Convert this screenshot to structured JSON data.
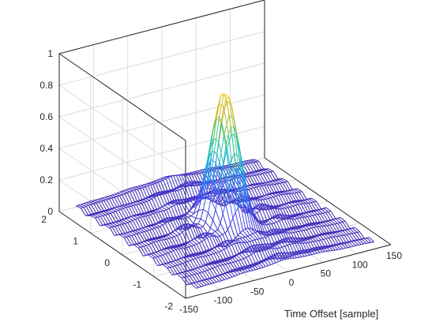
{
  "chart_data": {
    "type": "mesh3d",
    "title": "",
    "xlabel": "Time Offset [sample]",
    "ylabel": "",
    "zlabel": "",
    "xlim": [
      -150,
      150
    ],
    "ylim": [
      -2,
      2
    ],
    "zlim": [
      0,
      1
    ],
    "x_ticks": [
      -150,
      -100,
      -50,
      0,
      50,
      100,
      150
    ],
    "x_tick_labels": [
      "-150",
      "-100",
      "-50",
      "0",
      "50",
      "100",
      "150"
    ],
    "y_ticks": [
      -2,
      -1,
      0,
      1,
      2
    ],
    "y_tick_labels": [
      "-2",
      "-1",
      "0",
      "1",
      "2"
    ],
    "z_ticks": [
      0,
      0.2,
      0.4,
      0.6,
      0.8,
      1
    ],
    "z_tick_labels": [
      "0",
      "0.2",
      "0.4",
      "0.6",
      "0.8",
      "1"
    ],
    "grid": true,
    "colormap": [
      "#3e26a8",
      "#4742e8",
      "#2e87f7",
      "#10b9d2",
      "#48cb86",
      "#c3b82a",
      "#fbd32e",
      "#f9fb0e"
    ],
    "surface": {
      "x_range": [
        -130,
        130
      ],
      "y_range": [
        -1.9,
        1.9
      ],
      "peak": {
        "x": 0,
        "y": 0,
        "z": 0.87
      },
      "main_lobe_halfwidth_x": 20,
      "main_lobe_halfwidth_y": 0.5,
      "sidelobe_max": 0.3
    }
  }
}
